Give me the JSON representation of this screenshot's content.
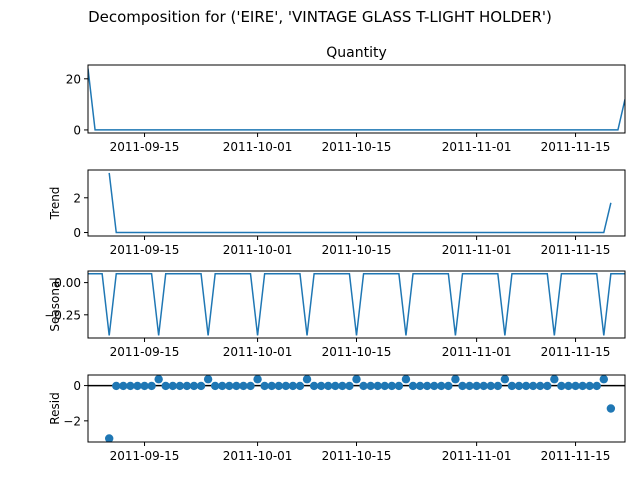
{
  "figure": {
    "suptitle": "Decomposition for ('EIRE', 'VINTAGE GLASS T-LIGHT HOLDER')"
  },
  "colors": {
    "line": "#1f77b4",
    "zero_line": "#000000",
    "axes": "#000000",
    "background": "#ffffff"
  },
  "chart_data": [
    {
      "type": "line",
      "title": "Quantity",
      "ylabel": "",
      "xlim": [
        "2011-09-07",
        "2011-11-22"
      ],
      "ylim": [
        -1.2,
        25.4
      ],
      "yticks": [
        0,
        20
      ],
      "xticks": [
        "2011-09-15",
        "2011-10-01",
        "2011-10-15",
        "2011-11-01",
        "2011-11-15"
      ],
      "series": [
        {
          "x": [
            "2011-09-07",
            "2011-09-08",
            "2011-11-21",
            "2011-11-22"
          ],
          "values": [
            24,
            0,
            0,
            12
          ]
        }
      ]
    },
    {
      "type": "line",
      "title": "",
      "ylabel": "Trend",
      "xlim": [
        "2011-09-07",
        "2011-11-22"
      ],
      "ylim": [
        -0.2,
        3.6
      ],
      "yticks": [
        0,
        2
      ],
      "xticks": [
        "2011-09-15",
        "2011-10-01",
        "2011-10-15",
        "2011-11-01",
        "2011-11-15"
      ],
      "series": [
        {
          "x": [
            "2011-09-10",
            "2011-09-11",
            "2011-11-19",
            "2011-11-20"
          ],
          "values": [
            3.43,
            0,
            0,
            1.71
          ]
        }
      ]
    },
    {
      "type": "line",
      "title": "",
      "ylabel": "Seasonal",
      "xlim": [
        "2011-09-07",
        "2011-11-22"
      ],
      "ylim": [
        -0.43,
        0.09
      ],
      "yticks": [
        0.0,
        -0.25
      ],
      "ytick_labels": [
        "0.00",
        "−0.25"
      ],
      "xticks": [
        "2011-09-15",
        "2011-10-01",
        "2011-10-15",
        "2011-11-01",
        "2011-11-15"
      ],
      "seasonal_pattern": {
        "start": "2011-09-07",
        "end": "2011-11-22",
        "period_days": 7,
        "high": 0.069,
        "low": -0.41,
        "first_low": "2011-09-10"
      }
    },
    {
      "type": "scatter",
      "title": "",
      "ylabel": "Resid",
      "xlim": [
        "2011-09-07",
        "2011-11-22"
      ],
      "ylim": [
        -3.2,
        0.6
      ],
      "yticks": [
        0,
        -2
      ],
      "ytick_labels": [
        "0",
        "−2"
      ],
      "xticks": [
        "2011-09-15",
        "2011-10-01",
        "2011-10-15",
        "2011-11-01",
        "2011-11-15"
      ],
      "zero_line": true,
      "residuals": {
        "first": {
          "x": "2011-09-10",
          "y": -3.0
        },
        "last": {
          "x": "2011-11-20",
          "y": -1.3
        },
        "regular_start": "2011-09-11",
        "regular_end": "2011-11-19",
        "regular_value": -0.02,
        "period_days": 7,
        "peak_first": "2011-09-17",
        "peak_value": 0.36
      }
    }
  ]
}
